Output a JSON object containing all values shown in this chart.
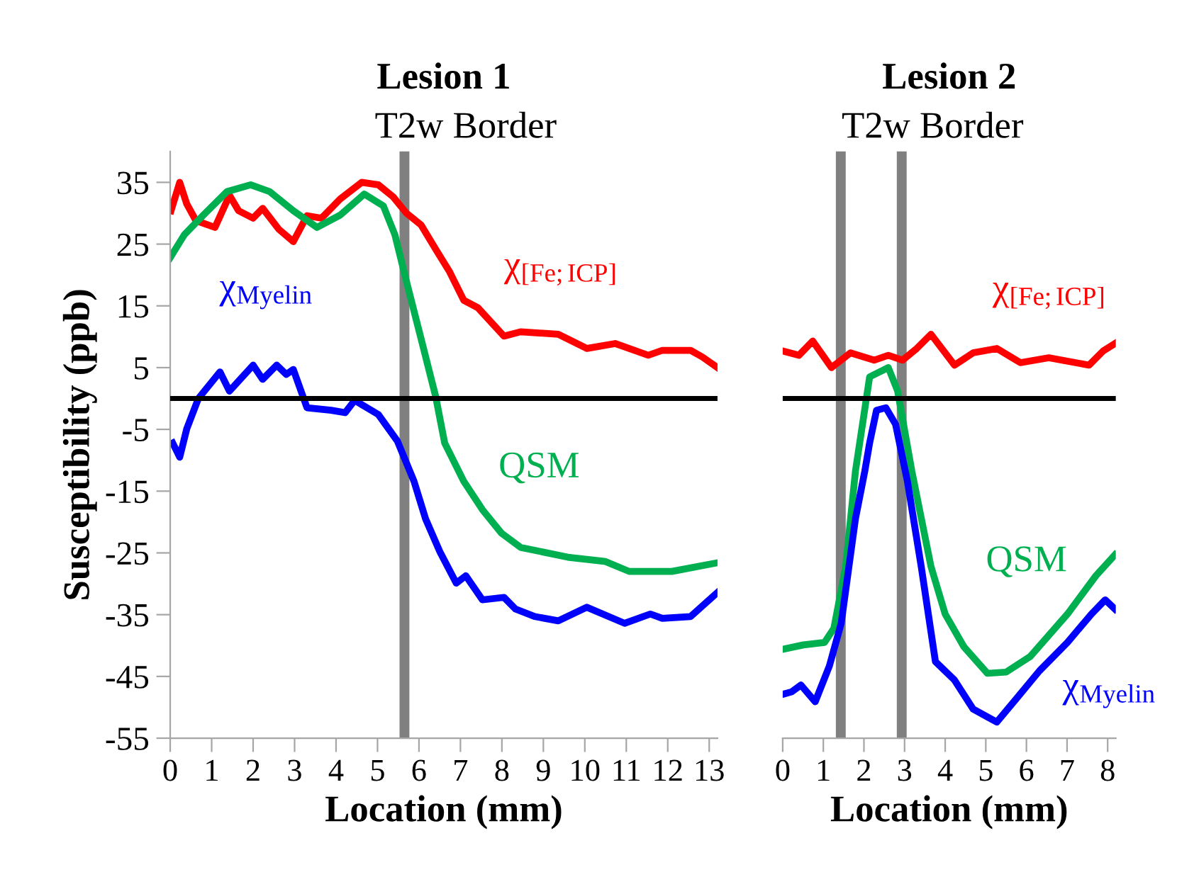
{
  "chart_data": [
    {
      "type": "line",
      "title": "Lesion 1",
      "xlabel": "Location (mm)",
      "ylabel": "Susceptibility (ppb)",
      "xlim": [
        0,
        13.2
      ],
      "xticks": [
        0,
        1,
        2,
        3,
        4,
        5,
        6,
        7,
        8,
        9,
        10,
        11,
        12,
        13
      ],
      "ylim": [
        -55,
        40
      ],
      "yticks": [
        35,
        25,
        15,
        5,
        -5,
        -15,
        -25,
        -35,
        -45,
        -55
      ],
      "grid": false,
      "legend": false,
      "line_style": "solid",
      "marker": "none",
      "series": [
        {
          "name": "χ$_{[Fe;ICP]}$",
          "color": "#ff0000",
          "x": [
            0.02,
            0.23,
            0.4,
            0.62,
            1.08,
            1.43,
            1.65,
            2.0,
            2.23,
            2.62,
            2.97,
            3.3,
            3.65,
            4.1,
            4.62,
            5.02,
            5.37,
            5.7,
            6.05,
            6.4,
            6.74,
            7.08,
            7.42,
            8.05,
            8.45,
            9.36,
            10.05,
            10.73,
            11.53,
            11.87,
            12.55,
            12.84,
            13.2
          ],
          "values": [
            30.4,
            35,
            31.5,
            28.8,
            27.7,
            32.9,
            30.4,
            29.2,
            30.8,
            27.4,
            25.4,
            29.6,
            29.2,
            32.3,
            35,
            34.6,
            32.7,
            30,
            28.1,
            24.2,
            20.5,
            15.9,
            14.7,
            10.1,
            10.8,
            10.4,
            8.1,
            8.9,
            7.0,
            7.8,
            7.8,
            6.7,
            5.0
          ]
        },
        {
          "name": "QSM",
          "color": "#00b050",
          "x": [
            0,
            0.34,
            0.8,
            1.37,
            1.94,
            2.4,
            2.97,
            3.54,
            4.1,
            4.68,
            5.14,
            5.42,
            5.7,
            6.05,
            6.4,
            6.62,
            7.08,
            7.53,
            7.99,
            8.45,
            9.59,
            10.5,
            11.07,
            12.1,
            13.2
          ],
          "values": [
            22.8,
            26.5,
            29.7,
            33.5,
            34.6,
            33.5,
            30.4,
            27.7,
            29.7,
            33.1,
            31.2,
            26.5,
            18.9,
            9.7,
            0.4,
            -7.2,
            -13.4,
            -18,
            -21.8,
            -24.1,
            -25.7,
            -26.4,
            -28,
            -28,
            -26.6
          ]
        },
        {
          "name": "χ$_{Myelin}$",
          "color": "#0000ff",
          "x": [
            0.06,
            0.23,
            0.4,
            0.68,
            1.2,
            1.43,
            2.0,
            2.23,
            2.57,
            2.8,
            2.97,
            3.3,
            3.88,
            4.22,
            4.45,
            5.02,
            5.48,
            5.88,
            6.16,
            6.51,
            6.9,
            7.13,
            7.53,
            8.05,
            8.33,
            8.79,
            9.36,
            10.05,
            10.96,
            11.58,
            11.87,
            12.55,
            13.2
          ],
          "values": [
            -7.2,
            -9.5,
            -4.9,
            0,
            4.3,
            1.2,
            5.4,
            3.1,
            5.4,
            3.9,
            4.7,
            -1.5,
            -1.9,
            -2.3,
            -0.3,
            -2.6,
            -6.9,
            -13.4,
            -19.5,
            -24.9,
            -29.9,
            -28.7,
            -32.6,
            -32.2,
            -34.1,
            -35.3,
            -36,
            -33.8,
            -36.4,
            -34.9,
            -35.6,
            -35.3,
            -31.4
          ]
        }
      ],
      "ref_lines": [
        {
          "axis": "y",
          "value": 0,
          "color": "#000000"
        },
        {
          "axis": "x",
          "value": 5.65,
          "color": "#808080"
        }
      ],
      "annotations": [
        "T2w Border"
      ]
    },
    {
      "type": "line",
      "title": "Lesion 2",
      "xlabel": "Location (mm)",
      "xlim": [
        0,
        8.2
      ],
      "xticks": [
        0,
        1,
        2,
        3,
        4,
        5,
        6,
        7,
        8
      ],
      "ylim": [
        -55,
        40
      ],
      "tick_labels": "x",
      "grid": false,
      "legend": false,
      "line_style": "solid",
      "marker": "none",
      "series": [
        {
          "name": "χ$_{[Fe;ICP]}$",
          "color": "#ff0000",
          "x": [
            0,
            0.4,
            0.74,
            1.2,
            1.67,
            2.25,
            2.6,
            2.95,
            3.3,
            3.65,
            4.23,
            4.69,
            5.27,
            5.85,
            6.55,
            7.54,
            7.89,
            8.18
          ],
          "values": [
            7.7,
            7,
            9.3,
            5,
            7.4,
            6.2,
            7,
            6.2,
            8.1,
            10.4,
            5.4,
            7.4,
            8.1,
            5.8,
            6.6,
            5.4,
            7.7,
            8.9
          ]
        },
        {
          "name": "QSM",
          "color": "#00b050",
          "x": [
            0,
            0.51,
            1.03,
            1.26,
            1.55,
            1.79,
            2.14,
            2.6,
            2.83,
            3.18,
            3.65,
            4.0,
            4.46,
            5.04,
            5.5,
            6.09,
            7.01,
            7.71,
            8.18
          ],
          "values": [
            -40.6,
            -39.9,
            -39.5,
            -37.2,
            -27.2,
            -11.8,
            3.5,
            5,
            1.2,
            -11.8,
            -27.2,
            -34.9,
            -40.2,
            -44.5,
            -44.3,
            -41.8,
            -34.9,
            -28.7,
            -25.3
          ]
        },
        {
          "name": "χ$_{Myelin}$",
          "color": "#0000ff",
          "x": [
            0,
            0.22,
            0.45,
            0.8,
            1.15,
            1.44,
            1.79,
            2.02,
            2.14,
            2.31,
            2.54,
            2.78,
            3.07,
            3.41,
            3.76,
            4.23,
            4.69,
            5.27,
            5.74,
            6.32,
            7.01,
            7.6,
            7.94,
            8.18
          ],
          "values": [
            -47.9,
            -47.5,
            -46.4,
            -49.1,
            -43.3,
            -36.4,
            -19.5,
            -11.8,
            -7.2,
            -1.9,
            -1.5,
            -4.2,
            -13.4,
            -27.2,
            -42.6,
            -45.6,
            -50.3,
            -52.4,
            -48.7,
            -44.1,
            -39.5,
            -34.9,
            -32.6,
            -34.1
          ]
        }
      ],
      "ref_lines": [
        {
          "axis": "y",
          "value": 0,
          "color": "#000000"
        },
        {
          "axis": "x",
          "value": 1.43,
          "color": "#808080"
        },
        {
          "axis": "x",
          "value": 2.93,
          "color": "#808080"
        }
      ],
      "annotations": [
        "T2w Border"
      ]
    }
  ]
}
